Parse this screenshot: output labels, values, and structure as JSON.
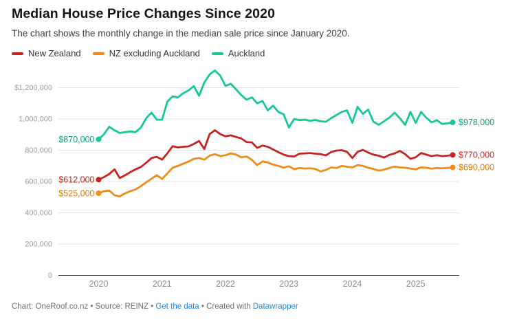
{
  "header": {
    "title": "Median House Price Changes Since 2020",
    "subtitle": "The chart shows the monthly change in the median sale price since January 2020."
  },
  "legend": {
    "items": [
      {
        "label": "New Zealand",
        "color": "#c7231f"
      },
      {
        "label": "NZ excluding Auckland",
        "color": "#ef8b17"
      },
      {
        "label": "Auckland",
        "color": "#17c798"
      }
    ]
  },
  "chart_data": {
    "type": "line",
    "x_start": "2020-01",
    "x_end": "2025-08",
    "grid": "horizontal",
    "ylim": [
      0,
      1310000
    ],
    "x_axis": {
      "ticks": [
        {
          "month_index": 0,
          "label": "2020"
        },
        {
          "month_index": 12,
          "label": "2021"
        },
        {
          "month_index": 24,
          "label": "2022"
        },
        {
          "month_index": 36,
          "label": "2023"
        },
        {
          "month_index": 48,
          "label": "2024"
        },
        {
          "month_index": 60,
          "label": "2025"
        }
      ]
    },
    "y_axis": {
      "ticks": [
        {
          "value": 1200000,
          "label": "$1,200,000"
        },
        {
          "value": 1000000,
          "label": "1,000,000"
        },
        {
          "value": 800000,
          "label": "800,000"
        },
        {
          "value": 600000,
          "label": "600,000"
        },
        {
          "value": 400000,
          "label": "400,000"
        },
        {
          "value": 200000,
          "label": "200,000"
        },
        {
          "value": 0,
          "label": "0"
        }
      ]
    },
    "series": [
      {
        "name": "New Zealand",
        "color": "#c7231f",
        "label_color": "#c7231f",
        "start_label": "$612,000",
        "end_label": "$770,000",
        "values": [
          612000,
          628000,
          648000,
          678000,
          622000,
          640000,
          660000,
          678000,
          693000,
          720000,
          750000,
          758000,
          740000,
          780000,
          826000,
          818000,
          822000,
          824000,
          840000,
          859000,
          808000,
          903000,
          928000,
          903000,
          889000,
          895000,
          885000,
          875000,
          852000,
          850000,
          815000,
          830000,
          822000,
          805000,
          788000,
          772000,
          762000,
          760000,
          778000,
          780000,
          782000,
          778000,
          775000,
          767000,
          788000,
          798000,
          800000,
          790000,
          750000,
          790000,
          802000,
          785000,
          772000,
          765000,
          753000,
          770000,
          780000,
          795000,
          775000,
          745000,
          755000,
          782000,
          772000,
          762000,
          768000,
          762000,
          765000,
          770000
        ]
      },
      {
        "name": "NZ excluding Auckland",
        "color": "#ef8b17",
        "label_color": "#d97c06",
        "start_label": "$525,000",
        "end_label": "$690,000",
        "values": [
          525000,
          538000,
          542000,
          512000,
          505000,
          524000,
          538000,
          550000,
          570000,
          595000,
          618000,
          640000,
          616000,
          652000,
          688000,
          700000,
          714000,
          728000,
          745000,
          750000,
          740000,
          765000,
          775000,
          762000,
          768000,
          780000,
          772000,
          755000,
          760000,
          738000,
          705000,
          728000,
          722000,
          708000,
          700000,
          689000,
          697000,
          679000,
          686000,
          683000,
          685000,
          680000,
          664000,
          674000,
          690000,
          686000,
          700000,
          694000,
          690000,
          705000,
          700000,
          688000,
          680000,
          670000,
          676000,
          686000,
          696000,
          690000,
          688000,
          683000,
          678000,
          690000,
          688000,
          682000,
          686000,
          684000,
          687000,
          690000
        ]
      },
      {
        "name": "Auckland",
        "color": "#17c798",
        "label_color": "#0b9e78",
        "start_label": "$870,000",
        "end_label": "$978,000",
        "values": [
          870000,
          902000,
          950000,
          928000,
          910000,
          916000,
          920000,
          916000,
          945000,
          1005000,
          1040000,
          995000,
          995000,
          1110000,
          1145000,
          1138000,
          1165000,
          1182000,
          1210000,
          1148000,
          1233000,
          1284000,
          1310000,
          1277000,
          1211000,
          1225000,
          1189000,
          1152000,
          1123000,
          1138000,
          1100000,
          1115000,
          1055000,
          1085000,
          1045000,
          1030000,
          945000,
          1000000,
          992000,
          995000,
          988000,
          993000,
          985000,
          982000,
          1005000,
          1025000,
          1045000,
          1055000,
          975000,
          1078000,
          1032000,
          1060000,
          982000,
          962000,
          985000,
          1008000,
          1040000,
          1005000,
          962000,
          1045000,
          975000,
          1045000,
          1008000,
          978000,
          992000,
          968000,
          972000,
          978000
        ]
      }
    ]
  },
  "footer": {
    "prefix": "Chart: OneRoof.co.nz • Source: REINZ • ",
    "link1": "Get the data",
    "middle": " • Created with ",
    "link2": "Datawrapper",
    "link_color": "#1e87e5"
  }
}
